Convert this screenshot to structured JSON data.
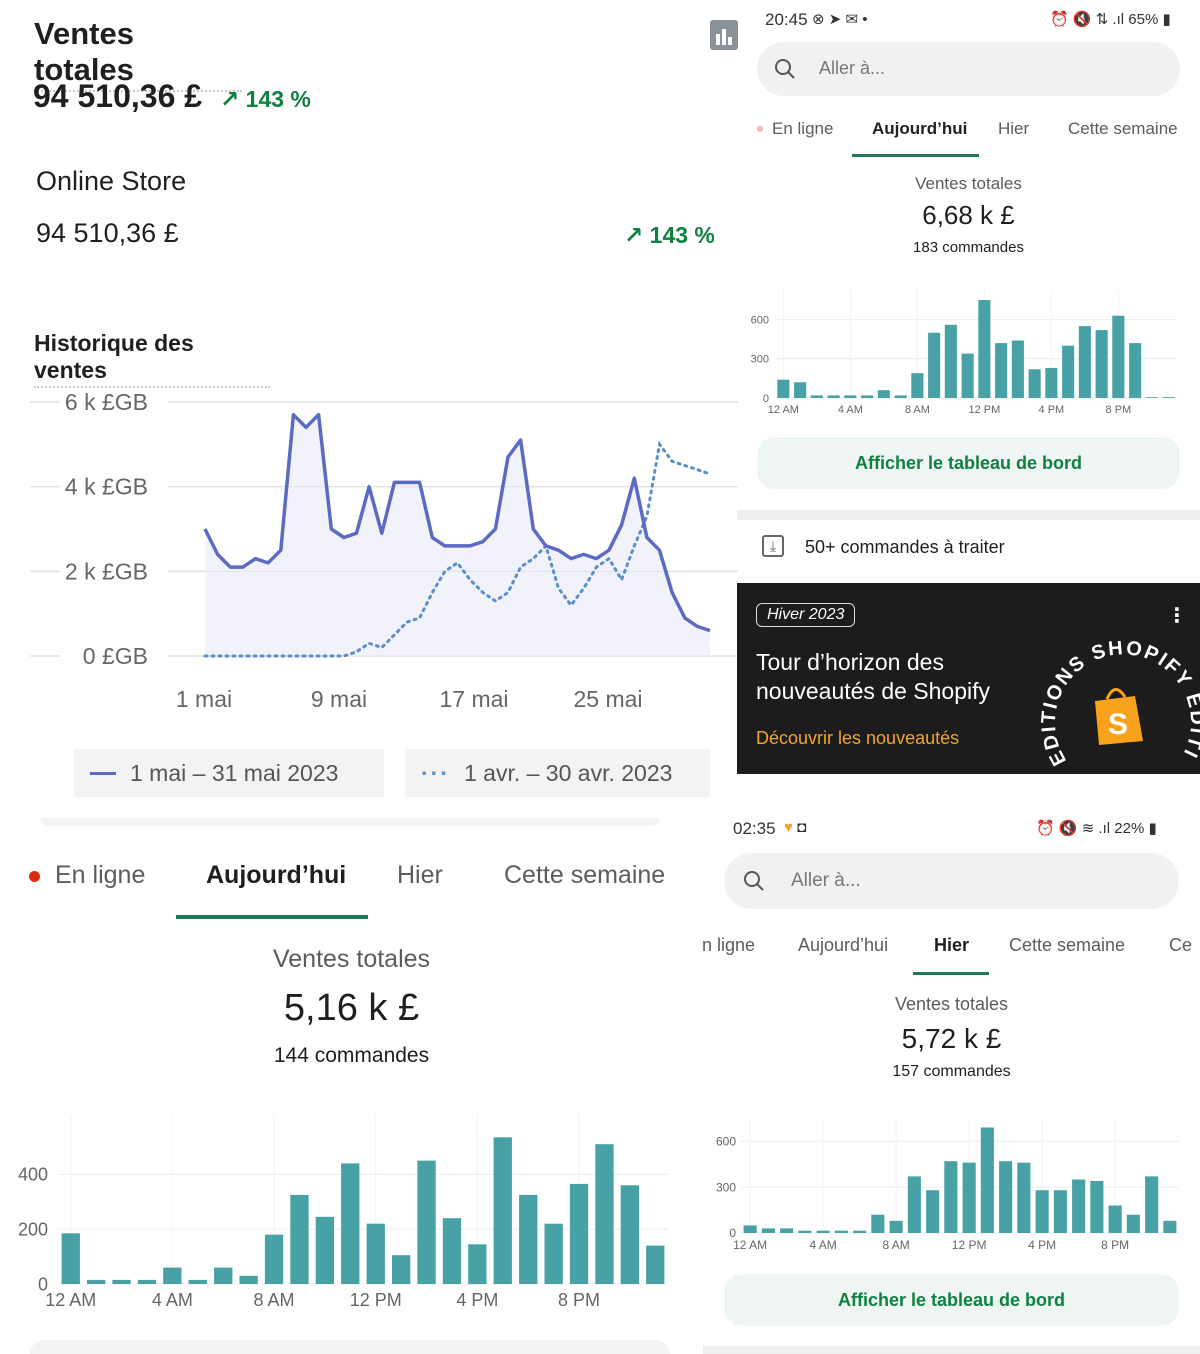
{
  "summary": {
    "title": "Ventes totales",
    "amount": "94 510,36 £",
    "change": "143 %",
    "store_name": "Online Store",
    "store_amount": "94 510,36 £",
    "store_change": "143 %"
  },
  "history": {
    "title": "Historique des ventes",
    "legend": [
      "1 mai – 31 mai 2023",
      "1 avr. – 30 avr. 2023"
    ],
    "colors": {
      "current": "#5c6ac4",
      "previous": "#5b8fc9"
    },
    "chart_data": {
      "type": "line",
      "ytick_labels": [
        "6 k £GB",
        "4 k £GB",
        "2 k £GB",
        "0 £GB"
      ],
      "yticks": [
        6000,
        4000,
        2000,
        0
      ],
      "xtick_labels": [
        "1 mai",
        "9 mai",
        "17 mai",
        "25 mai"
      ],
      "ylim": [
        0,
        6000
      ],
      "series": [
        {
          "name": "1 mai – 31 mai 2023",
          "style": "solid",
          "values": [
            3000,
            2400,
            2100,
            2100,
            2300,
            2200,
            2500,
            5700,
            5400,
            5700,
            3000,
            2800,
            2900,
            4000,
            2900,
            4100,
            4100,
            4100,
            2800,
            2600,
            2600,
            2600,
            2700,
            3000,
            4700,
            5100,
            3000,
            2600,
            2500,
            2300,
            2400,
            2300,
            2500,
            3100,
            4200,
            2800,
            2500,
            1500,
            900,
            700,
            600
          ]
        },
        {
          "name": "1 avr. – 30 avr. 2023",
          "style": "dotted",
          "values": [
            0,
            0,
            0,
            0,
            0,
            0,
            0,
            0,
            0,
            0,
            0,
            0,
            100,
            300,
            200,
            500,
            800,
            900,
            1500,
            2000,
            2200,
            1800,
            1500,
            1300,
            1500,
            2100,
            2300,
            2600,
            1600,
            1200,
            1600,
            2100,
            2300,
            1800,
            2600,
            3300,
            5000,
            4600,
            4500,
            4400,
            4300
          ]
        }
      ]
    }
  },
  "phone_tr": {
    "status_time": "20:45",
    "status_battery": "65%",
    "search_placeholder": "Aller à...",
    "tabs": [
      "En ligne",
      "Aujourd’hui",
      "Hier",
      "Cette semaine"
    ],
    "total_label": "Ventes totales",
    "total_value": "6,68 k £",
    "orders": "183 commandes",
    "button": "Afficher le tableau de bord",
    "pending": "50+ commandes à traiter",
    "chart_data": {
      "type": "bar",
      "ytick_labels": [
        "600",
        "300",
        "0"
      ],
      "yticks": [
        600,
        300,
        0
      ],
      "xtick_labels": [
        "12 AM",
        "4 AM",
        "8 AM",
        "12 PM",
        "4 PM",
        "8 PM"
      ],
      "ylim": [
        0,
        750
      ],
      "values": [
        140,
        120,
        20,
        20,
        20,
        20,
        60,
        20,
        190,
        500,
        560,
        340,
        750,
        420,
        440,
        220,
        230,
        400,
        550,
        520,
        630,
        420,
        5,
        5
      ]
    }
  },
  "promo": {
    "badge": "Hiver 2023",
    "title_line1": "Tour d’horizon des",
    "title_line2": "nouveautés de Shopify",
    "link": "Découvrir les nouveautés",
    "logo_text": "SHOPIFY EDITIONS · EDITIONS"
  },
  "today_bl": {
    "tabs": [
      "En ligne",
      "Aujourd’hui",
      "Hier",
      "Cette semaine"
    ],
    "total_label": "Ventes totales",
    "total_value": "5,16 k £",
    "orders": "144 commandes",
    "chart_data": {
      "type": "bar",
      "ytick_labels": [
        "400",
        "200",
        "0"
      ],
      "yticks": [
        400,
        200,
        0
      ],
      "xtick_labels": [
        "12 AM",
        "4 AM",
        "8 AM",
        "12 PM",
        "4 PM",
        "8 PM"
      ],
      "ylim": [
        0,
        580
      ],
      "values": [
        185,
        15,
        15,
        15,
        60,
        15,
        60,
        30,
        180,
        325,
        245,
        440,
        220,
        105,
        450,
        240,
        145,
        535,
        325,
        220,
        365,
        510,
        360,
        140
      ]
    }
  },
  "phone_br": {
    "status_time": "02:35",
    "status_battery": "22%",
    "search_placeholder": "Aller à...",
    "tabs": [
      "n ligne",
      "Aujourd’hui",
      "Hier",
      "Cette semaine",
      "Ce"
    ],
    "total_label": "Ventes totales",
    "total_value": "5,72 k £",
    "orders": "157 commandes",
    "button": "Afficher le tableau de bord",
    "chart_data": {
      "type": "bar",
      "ytick_labels": [
        "600",
        "300",
        "0"
      ],
      "yticks": [
        600,
        300,
        0
      ],
      "xtick_labels": [
        "12 AM",
        "4 AM",
        "8 AM",
        "12 PM",
        "4 PM",
        "8 PM"
      ],
      "ylim": [
        0,
        700
      ],
      "values": [
        50,
        30,
        30,
        15,
        15,
        15,
        15,
        120,
        80,
        370,
        280,
        470,
        460,
        690,
        470,
        460,
        280,
        280,
        350,
        340,
        180,
        120,
        370,
        80
      ]
    }
  }
}
